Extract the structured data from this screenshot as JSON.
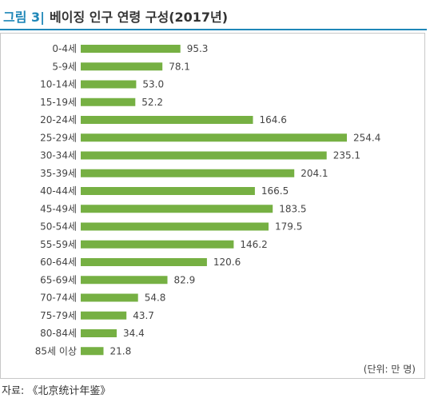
{
  "header": {
    "figure_label": "그림 3|",
    "title": "베이징 인구 연령 구성(2017년)"
  },
  "unit_note": "(단위: 만 명)",
  "source": "자료: 《北京统计年鉴》",
  "colors": {
    "bar": "#76b043",
    "accent": "#1f87b8",
    "text": "#444444"
  },
  "chart_data": {
    "type": "bar",
    "orientation": "horizontal",
    "title": "베이징 인구 연령 구성(2017년)",
    "unit": "만 명",
    "categories": [
      "0-4세",
      "5-9세",
      "10-14세",
      "15-19세",
      "20-24세",
      "25-29세",
      "30-34세",
      "35-39세",
      "40-44세",
      "45-49세",
      "50-54세",
      "55-59세",
      "60-64세",
      "65-69세",
      "70-74세",
      "75-79세",
      "80-84세",
      "85세 이상"
    ],
    "values": [
      95.3,
      78.1,
      53.0,
      52.2,
      164.6,
      254.4,
      235.1,
      204.1,
      166.5,
      183.5,
      179.5,
      146.2,
      120.6,
      82.9,
      54.8,
      43.7,
      34.4,
      21.8
    ],
    "value_labels": [
      "95.3",
      "78.1",
      "53.0",
      "52.2",
      "164.6",
      "254.4",
      "235.1",
      "204.1",
      "166.5",
      "183.5",
      "179.5",
      "146.2",
      "120.6",
      "82.9",
      "54.8",
      "43.7",
      "34.4",
      "21.8"
    ],
    "xlim": [
      0,
      254.4
    ],
    "grid": false,
    "legend": false
  }
}
